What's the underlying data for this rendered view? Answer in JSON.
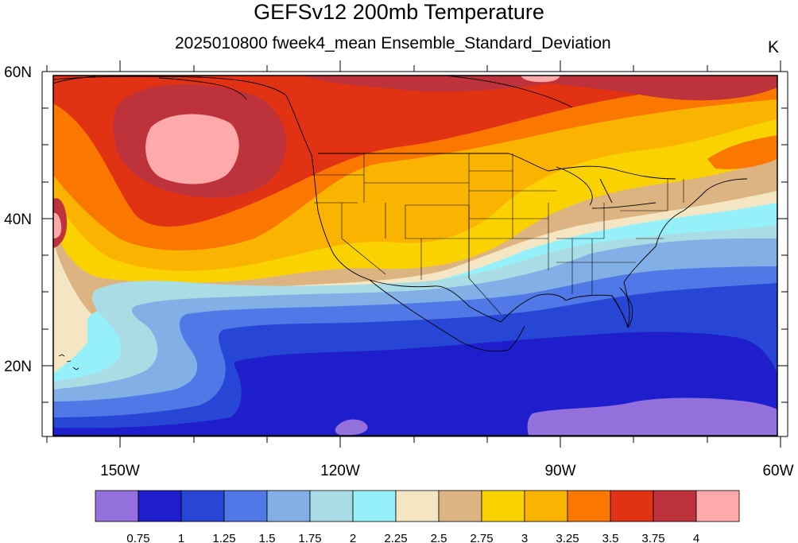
{
  "title": "GEFSv12 200mb Temperature",
  "subtitle": "2025010800 fweek4_mean Ensemble_Standard_Deviation",
  "units": "K",
  "axes": {
    "lat_labels": [
      "60N",
      "40N",
      "20N"
    ],
    "lon_labels": [
      "150W",
      "120W",
      "90W",
      "60W"
    ],
    "lat_range": [
      10,
      60
    ],
    "lon_range": [
      -160,
      -60
    ]
  },
  "colorbar": {
    "labels": [
      "0.75",
      "1",
      "1.25",
      "1.5",
      "1.75",
      "2",
      "2.25",
      "2.5",
      "2.75",
      "3",
      "3.25",
      "3.5",
      "3.75",
      "4"
    ],
    "colors": [
      "#9370DB",
      "#1E1ECC",
      "#2846D6",
      "#5078E6",
      "#82AFE6",
      "#AADCE6",
      "#96F0FA",
      "#F5E6C3",
      "#DCB482",
      "#FAD200",
      "#FAB400",
      "#FA7800",
      "#E13214",
      "#BE323C",
      "#FFAAAA"
    ]
  },
  "map": {
    "projection": "cylindrical-equidistant",
    "field": "200mb temperature ensemble standard deviation",
    "colors": {
      "land_outline": "#000000",
      "frame": "#000000"
    }
  }
}
